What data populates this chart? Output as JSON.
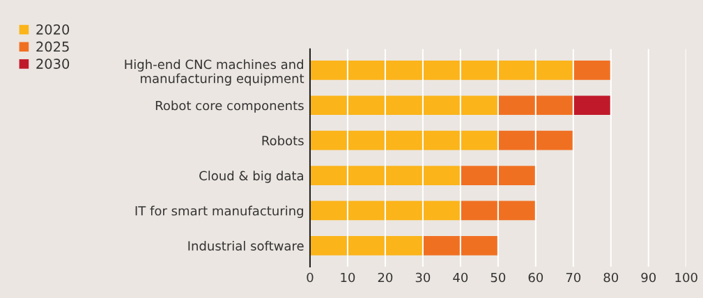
{
  "chart_data": {
    "type": "bar",
    "orientation": "horizontal",
    "stacked": true,
    "categories": [
      "High-end CNC machines and\nmanufacturing equipment",
      "Robot core components",
      "Robots",
      "Cloud & big data",
      "IT for smart manufacturing",
      "Industrial software"
    ],
    "series": [
      {
        "name": "2020",
        "color": "#fbb41a",
        "values": [
          70,
          50,
          50,
          40,
          40,
          30
        ]
      },
      {
        "name": "2025",
        "color": "#f07022",
        "values": [
          10,
          20,
          20,
          20,
          20,
          20
        ]
      },
      {
        "name": "2030",
        "color": "#c01a2a",
        "values": [
          null,
          10,
          null,
          null,
          null,
          null
        ]
      }
    ],
    "xlim": [
      0,
      100
    ],
    "xticks": [
      0,
      10,
      20,
      30,
      40,
      50,
      60,
      70,
      80,
      90,
      100
    ],
    "grid": "x",
    "legend": "top left"
  }
}
